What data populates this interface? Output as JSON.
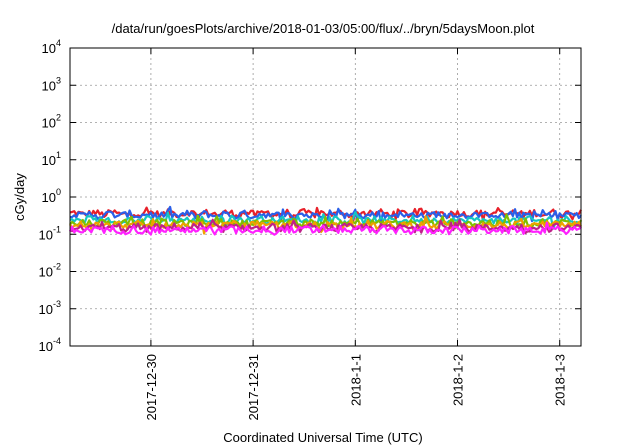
{
  "chart_data": {
    "type": "line",
    "title": "/data/run/goesPlots/archive/2018-01-03/05:00/flux/../bryn/5daysMoon.plot",
    "xlabel": "Coordinated Universal Time (UTC)",
    "ylabel": "cGy/day",
    "yscale": "log",
    "ylim": [
      0.0001,
      10000
    ],
    "yticks": [
      {
        "base": "10",
        "exp": "-4"
      },
      {
        "base": "10",
        "exp": "-3"
      },
      {
        "base": "10",
        "exp": "-2"
      },
      {
        "base": "10",
        "exp": "-1"
      },
      {
        "base": "10",
        "exp": "0"
      },
      {
        "base": "10",
        "exp": "1"
      },
      {
        "base": "10",
        "exp": "2"
      },
      {
        "base": "10",
        "exp": "3"
      },
      {
        "base": "10",
        "exp": "4"
      }
    ],
    "xlim": [
      "2017-12-29T05:00",
      "2018-01-03T05:00"
    ],
    "xticks": [
      {
        "label": "2017-12-30",
        "date": "2017-12-30T00:00"
      },
      {
        "label": "2017-12-31",
        "date": "2017-12-31T00:00"
      },
      {
        "label": "2018-1-1",
        "date": "2018-01-01T00:00"
      },
      {
        "label": "2018-1-2",
        "date": "2018-01-02T00:00"
      },
      {
        "label": "2018-1-3",
        "date": "2018-01-03T00:00"
      }
    ],
    "grid": true,
    "series": [
      {
        "color": "#e8202a",
        "level": 0.36
      },
      {
        "color": "#2a5fe8",
        "level": 0.33
      },
      {
        "color": "#15c6c2",
        "level": 0.24
      },
      {
        "color": "#7fbf00",
        "level": 0.2
      },
      {
        "color": "#f0a000",
        "level": 0.175
      },
      {
        "color": "#c0208a",
        "level": 0.15
      },
      {
        "color": "#ff20ff",
        "level": 0.13
      }
    ]
  }
}
